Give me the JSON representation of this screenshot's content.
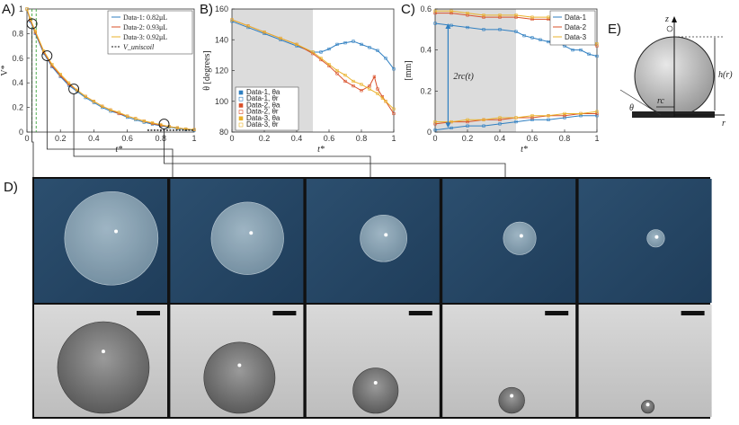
{
  "panels": {
    "a": "A)",
    "b": "B)",
    "c": "C)",
    "d": "D)",
    "e": "E)"
  },
  "colors": {
    "blue": "#2f7fc1",
    "red": "#d9502a",
    "yellow": "#eab22b",
    "green": "#3ba43b",
    "shade": "#dcdcdc"
  },
  "chart_data": [
    {
      "id": "A",
      "type": "line",
      "ylabel": "V*",
      "xlabel": "t*",
      "xlim": [
        0,
        1
      ],
      "ylim": [
        0,
        1
      ],
      "xticks": [
        "0",
        "0.2",
        "0.4",
        "0.6",
        "0.8",
        "1"
      ],
      "yticks": [
        "0",
        "0.2",
        "0.4",
        "0.6",
        "0.8",
        "1"
      ],
      "y_top_mark": "1",
      "legend_position": "top-right",
      "legend": [
        "Data-1: 0.82μL",
        "Data-2: 0.93μL",
        "Data-3: 0.92μL",
        "V_uniscoil"
      ],
      "series": [
        {
          "name": "Data-1: 0.82μL",
          "color": "#2f7fc1",
          "x": [
            0,
            0.02,
            0.05,
            0.1,
            0.15,
            0.2,
            0.25,
            0.3,
            0.35,
            0.4,
            0.45,
            0.5,
            0.55,
            0.6,
            0.65,
            0.7,
            0.75,
            0.8,
            0.85,
            0.9,
            0.95,
            1
          ],
          "y": [
            1,
            0.9,
            0.8,
            0.64,
            0.53,
            0.45,
            0.38,
            0.33,
            0.28,
            0.24,
            0.2,
            0.17,
            0.15,
            0.12,
            0.1,
            0.08,
            0.065,
            0.05,
            0.04,
            0.03,
            0.02,
            0.015
          ]
        },
        {
          "name": "Data-2: 0.93μL",
          "color": "#d9502a",
          "x": [
            0,
            0.02,
            0.05,
            0.1,
            0.15,
            0.2,
            0.25,
            0.3,
            0.35,
            0.4,
            0.45,
            0.5,
            0.55,
            0.6,
            0.65,
            0.7,
            0.75,
            0.8,
            0.85,
            0.9,
            0.95,
            1
          ],
          "y": [
            1,
            0.91,
            0.81,
            0.65,
            0.54,
            0.46,
            0.39,
            0.34,
            0.29,
            0.25,
            0.21,
            0.18,
            0.15,
            0.13,
            0.11,
            0.09,
            0.07,
            0.055,
            0.045,
            0.035,
            0.025,
            0.02
          ]
        },
        {
          "name": "Data-3: 0.92μL",
          "color": "#eab22b",
          "x": [
            0,
            0.02,
            0.05,
            0.1,
            0.15,
            0.2,
            0.25,
            0.3,
            0.35,
            0.4,
            0.45,
            0.5,
            0.55,
            0.6,
            0.65,
            0.7,
            0.75,
            0.8,
            0.85,
            0.9,
            0.95,
            1
          ],
          "y": [
            1,
            0.92,
            0.82,
            0.66,
            0.55,
            0.47,
            0.4,
            0.34,
            0.29,
            0.25,
            0.21,
            0.18,
            0.16,
            0.13,
            0.11,
            0.09,
            0.075,
            0.06,
            0.045,
            0.035,
            0.025,
            0.02
          ]
        },
        {
          "name": "V_uniscoil",
          "color": "#111111",
          "dashed": true,
          "x": [
            0.72,
            0.85,
            1
          ],
          "y": [
            0.015,
            0.015,
            0.015
          ]
        }
      ],
      "vlines": [
        {
          "x": 0.03,
          "color": "#3ba43b"
        },
        {
          "x": 0.055,
          "color": "#3ba43b"
        }
      ],
      "markers": [
        {
          "x": 0.03,
          "y": 0.88
        },
        {
          "x": 0.12,
          "y": 0.62
        },
        {
          "x": 0.28,
          "y": 0.35
        },
        {
          "x": 0.82,
          "y": 0.065
        }
      ]
    },
    {
      "id": "B",
      "type": "line",
      "ylabel": "θ [degrees]",
      "xlabel": "t*",
      "xlim": [
        0,
        1
      ],
      "ylim": [
        80,
        160
      ],
      "xticks": [
        "0",
        "0.2",
        "0.4",
        "0.6",
        "0.8",
        "1"
      ],
      "yticks": [
        "80",
        "100",
        "120",
        "140",
        "160"
      ],
      "shaded_x": [
        0,
        0.5
      ],
      "legend_position": "bottom-left",
      "legend": [
        "Data-1, θa",
        "Data-1, θr",
        "Data-2, θa",
        "Data-2, θr",
        "Data-3, θa",
        "Data-3, θr"
      ],
      "series": [
        {
          "name": "Data-1, θa",
          "color": "#2f7fc1",
          "x": [
            0,
            0.1,
            0.2,
            0.3,
            0.4,
            0.5,
            0.55,
            0.6,
            0.65,
            0.7,
            0.75,
            0.8,
            0.85,
            0.9,
            0.95,
            1
          ],
          "y": [
            152,
            148,
            144,
            140,
            136,
            132,
            132,
            134,
            137,
            138,
            139,
            137,
            135,
            133,
            128,
            121
          ]
        },
        {
          "name": "Data-2, θa",
          "color": "#d9502a",
          "x": [
            0,
            0.1,
            0.2,
            0.3,
            0.4,
            0.5,
            0.55,
            0.6,
            0.65,
            0.7,
            0.75,
            0.8,
            0.85,
            0.88,
            0.9,
            0.93,
            0.95,
            1
          ],
          "y": [
            153,
            149,
            145,
            141,
            137,
            131,
            127,
            123,
            118,
            113,
            110,
            107,
            110,
            116,
            108,
            103,
            100,
            92
          ]
        },
        {
          "name": "Data-3, θa",
          "color": "#eab22b",
          "x": [
            0,
            0.1,
            0.2,
            0.3,
            0.4,
            0.5,
            0.55,
            0.6,
            0.65,
            0.7,
            0.75,
            0.8,
            0.85,
            0.9,
            0.93,
            0.95,
            1
          ],
          "y": [
            153,
            149,
            145,
            141,
            137,
            132,
            128,
            124,
            120,
            117,
            113,
            111,
            108,
            105,
            102,
            100,
            95
          ]
        }
      ]
    },
    {
      "id": "C",
      "type": "line",
      "ylabel": "[mm]",
      "xlabel": "t*",
      "xlim": [
        0,
        1
      ],
      "ylim": [
        0,
        0.6
      ],
      "xticks": [
        "0",
        "0.2",
        "0.4",
        "0.6",
        "0.8",
        "1"
      ],
      "yticks": [
        "0",
        "0.2",
        "0.4",
        "0.6"
      ],
      "shaded_x": [
        0,
        0.5
      ],
      "annotation": "2rc(t)",
      "legend_position": "top-right",
      "legend": [
        "Data-1",
        "Data-2",
        "Data-3"
      ],
      "series": [
        {
          "name": "Data-1",
          "color": "#2f7fc1",
          "group": "top",
          "x": [
            0,
            0.1,
            0.2,
            0.3,
            0.4,
            0.5,
            0.55,
            0.6,
            0.65,
            0.7,
            0.75,
            0.8,
            0.85,
            0.9,
            0.95,
            1
          ],
          "y": [
            0.53,
            0.52,
            0.51,
            0.5,
            0.5,
            0.49,
            0.47,
            0.46,
            0.45,
            0.44,
            0.44,
            0.42,
            0.4,
            0.4,
            0.38,
            0.37
          ]
        },
        {
          "name": "Data-2",
          "color": "#d9502a",
          "group": "top",
          "x": [
            0,
            0.1,
            0.2,
            0.3,
            0.4,
            0.5,
            0.6,
            0.7,
            0.8,
            0.85,
            0.9,
            0.95,
            1
          ],
          "y": [
            0.58,
            0.58,
            0.57,
            0.56,
            0.56,
            0.56,
            0.55,
            0.55,
            0.54,
            0.52,
            0.48,
            0.44,
            0.42
          ]
        },
        {
          "name": "Data-3",
          "color": "#eab22b",
          "group": "top",
          "x": [
            0,
            0.1,
            0.2,
            0.3,
            0.4,
            0.5,
            0.6,
            0.7,
            0.8,
            0.85,
            0.9,
            0.95,
            1
          ],
          "y": [
            0.59,
            0.59,
            0.58,
            0.57,
            0.57,
            0.57,
            0.56,
            0.56,
            0.55,
            0.53,
            0.5,
            0.45,
            0.43
          ]
        },
        {
          "name": "Data-1 lower",
          "color": "#2f7fc1",
          "group": "bottom",
          "x": [
            0,
            0.1,
            0.2,
            0.3,
            0.4,
            0.5,
            0.6,
            0.7,
            0.8,
            0.9,
            1
          ],
          "y": [
            0.01,
            0.02,
            0.03,
            0.03,
            0.04,
            0.05,
            0.06,
            0.06,
            0.07,
            0.08,
            0.08
          ]
        },
        {
          "name": "Data-2 lower",
          "color": "#d9502a",
          "group": "bottom",
          "x": [
            0,
            0.1,
            0.2,
            0.3,
            0.4,
            0.5,
            0.6,
            0.7,
            0.8,
            0.9,
            1
          ],
          "y": [
            0.04,
            0.05,
            0.05,
            0.06,
            0.06,
            0.07,
            0.07,
            0.08,
            0.08,
            0.09,
            0.09
          ]
        },
        {
          "name": "Data-3 lower",
          "color": "#eab22b",
          "group": "bottom",
          "x": [
            0,
            0.1,
            0.2,
            0.3,
            0.4,
            0.5,
            0.6,
            0.7,
            0.8,
            0.9,
            1
          ],
          "y": [
            0.05,
            0.05,
            0.06,
            0.06,
            0.07,
            0.07,
            0.08,
            0.08,
            0.09,
            0.09,
            0.1
          ]
        }
      ]
    }
  ],
  "diagram_e": {
    "z": "z",
    "r": "r",
    "h": "h(r)",
    "rc": "rc",
    "theta": "θ"
  },
  "photos": {
    "top": [
      {
        "size": 0.8
      },
      {
        "size": 0.62
      },
      {
        "size": 0.4
      },
      {
        "size": 0.28
      },
      {
        "size": 0.15
      }
    ],
    "bottom": [
      {
        "size": 0.85
      },
      {
        "size": 0.66
      },
      {
        "size": 0.42
      },
      {
        "size": 0.24
      },
      {
        "size": 0.12
      }
    ]
  }
}
